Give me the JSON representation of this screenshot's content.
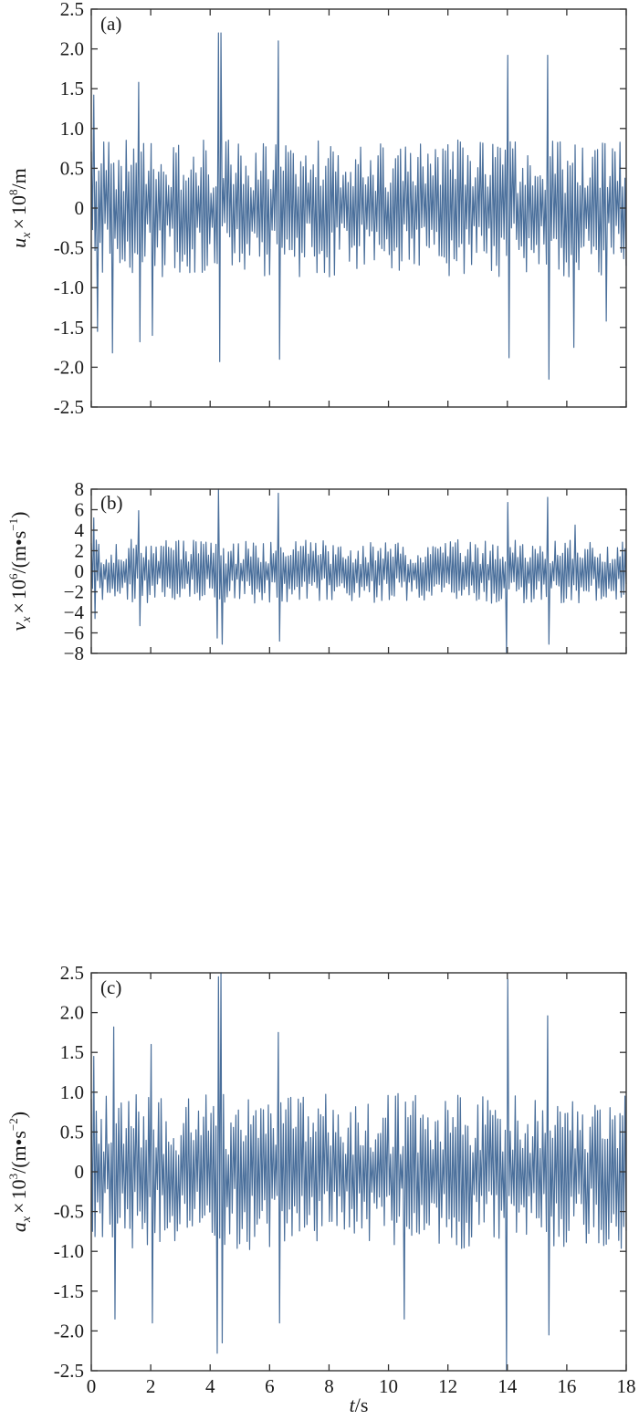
{
  "theme": {
    "line_color": "#4a6f9b",
    "axis_color": "#333333"
  },
  "chart_data": [
    {
      "type": "line",
      "panel_label": "(a)",
      "ylabel": {
        "symbol": "u",
        "subscript": "x",
        "times": "×",
        "base": "10",
        "exponent": "8",
        "unit": "/m"
      },
      "ylim": [
        -2.5,
        2.5
      ],
      "yticks": [
        2.5,
        2.0,
        1.5,
        1.0,
        0.5,
        0,
        -0.5,
        -1.0,
        -1.5,
        -2.0,
        -2.5
      ],
      "ytick_labels": [
        "2.5",
        "2.0",
        "1.5",
        "1.0",
        "0.5",
        "0",
        "-0.5",
        "-1.0",
        "-1.5",
        "-2.0",
        "-2.5"
      ],
      "xlim": [
        0,
        18
      ],
      "xticks": [
        0,
        2,
        4,
        6,
        8,
        10,
        12,
        14,
        16,
        18
      ],
      "show_xtick_labels": false,
      "typical_amplitude": 0.72,
      "spikes": [
        {
          "x": 0.05,
          "y": 1.42
        },
        {
          "x": 0.15,
          "y": -1.55
        },
        {
          "x": 0.7,
          "y": -1.82
        },
        {
          "x": 1.6,
          "y": 1.58
        },
        {
          "x": 1.6,
          "y": -1.68
        },
        {
          "x": 2.0,
          "y": -1.6
        },
        {
          "x": 4.25,
          "y": 2.2
        },
        {
          "x": 4.3,
          "y": -1.93
        },
        {
          "x": 4.35,
          "y": 2.2
        },
        {
          "x": 6.3,
          "y": 2.1
        },
        {
          "x": 6.35,
          "y": -1.9
        },
        {
          "x": 14.0,
          "y": 1.92
        },
        {
          "x": 14.0,
          "y": -1.88
        },
        {
          "x": 15.35,
          "y": 1.92
        },
        {
          "x": 15.4,
          "y": -2.15
        },
        {
          "x": 16.2,
          "y": -1.75
        },
        {
          "x": 17.3,
          "y": -1.42
        }
      ]
    },
    {
      "type": "line",
      "panel_label": "(b)",
      "ylabel": {
        "symbol": "v",
        "subscript": "x",
        "times": "×",
        "base": "10",
        "exponent": "6",
        "unit": "/(m•s",
        "unit_exponent": "−1",
        "closing": ")"
      },
      "ylim": [
        -8,
        8
      ],
      "yticks": [
        8,
        6,
        4,
        2,
        0,
        -2,
        -4,
        -6,
        -8
      ],
      "ytick_labels": [
        "8",
        "6",
        "4",
        "2",
        "0",
        "−2",
        "−4",
        "−6",
        "−8"
      ],
      "xlim": [
        0,
        18
      ],
      "xticks": [
        0,
        2,
        4,
        6,
        8,
        10,
        12,
        14,
        16,
        18
      ],
      "show_xtick_labels": false,
      "typical_amplitude": 2.6,
      "spikes": [
        {
          "x": 0.1,
          "y": 5.2
        },
        {
          "x": 0.1,
          "y": -4.6
        },
        {
          "x": 1.6,
          "y": 5.9
        },
        {
          "x": 1.6,
          "y": -5.3
        },
        {
          "x": 4.25,
          "y": -6.5
        },
        {
          "x": 4.3,
          "y": 8.0
        },
        {
          "x": 4.35,
          "y": -7.1
        },
        {
          "x": 6.3,
          "y": 7.6
        },
        {
          "x": 6.35,
          "y": -6.8
        },
        {
          "x": 13.95,
          "y": -7.9
        },
        {
          "x": 14.0,
          "y": 6.7
        },
        {
          "x": 15.35,
          "y": 7.2
        },
        {
          "x": 15.4,
          "y": -7.1
        },
        {
          "x": 16.3,
          "y": 4.5
        }
      ]
    },
    {
      "type": "line",
      "panel_label": "(c)",
      "ylabel": {
        "symbol": "a",
        "subscript": "x",
        "times": "×",
        "base": "10",
        "exponent": "3",
        "unit": "/(m•s",
        "unit_exponent": "−2",
        "closing": ")"
      },
      "ylim": [
        -2.5,
        2.5
      ],
      "yticks": [
        2.5,
        2.0,
        1.5,
        1.0,
        0.5,
        0,
        -0.5,
        -1.0,
        -1.5,
        -2.0,
        -2.5
      ],
      "ytick_labels": [
        "2.5",
        "2.0",
        "1.5",
        "1.0",
        "0.5",
        "0",
        "-0.5",
        "-1.0",
        "-1.5",
        "-2.0",
        "-2.5"
      ],
      "xlim": [
        0,
        18
      ],
      "xticks": [
        0,
        2,
        4,
        6,
        8,
        10,
        12,
        14,
        16,
        18
      ],
      "xtick_labels": [
        "0",
        "2",
        "4",
        "6",
        "8",
        "10",
        "12",
        "14",
        "16",
        "18"
      ],
      "show_xtick_labels": true,
      "xlabel": {
        "symbol": "t",
        "unit": "/s"
      },
      "typical_amplitude": 0.82,
      "spikes": [
        {
          "x": 0.1,
          "y": 1.45
        },
        {
          "x": 0.7,
          "y": 1.82
        },
        {
          "x": 0.75,
          "y": -1.85
        },
        {
          "x": 2.0,
          "y": 1.6
        },
        {
          "x": 2.0,
          "y": -1.9
        },
        {
          "x": 4.25,
          "y": -2.28
        },
        {
          "x": 4.3,
          "y": 2.45
        },
        {
          "x": 4.35,
          "y": 2.5
        },
        {
          "x": 4.38,
          "y": -2.15
        },
        {
          "x": 6.3,
          "y": 1.75
        },
        {
          "x": 6.35,
          "y": -1.9
        },
        {
          "x": 10.5,
          "y": -1.85
        },
        {
          "x": 13.95,
          "y": -2.5
        },
        {
          "x": 14.0,
          "y": 2.42
        },
        {
          "x": 15.35,
          "y": 1.96
        },
        {
          "x": 15.4,
          "y": -2.05
        }
      ]
    }
  ]
}
